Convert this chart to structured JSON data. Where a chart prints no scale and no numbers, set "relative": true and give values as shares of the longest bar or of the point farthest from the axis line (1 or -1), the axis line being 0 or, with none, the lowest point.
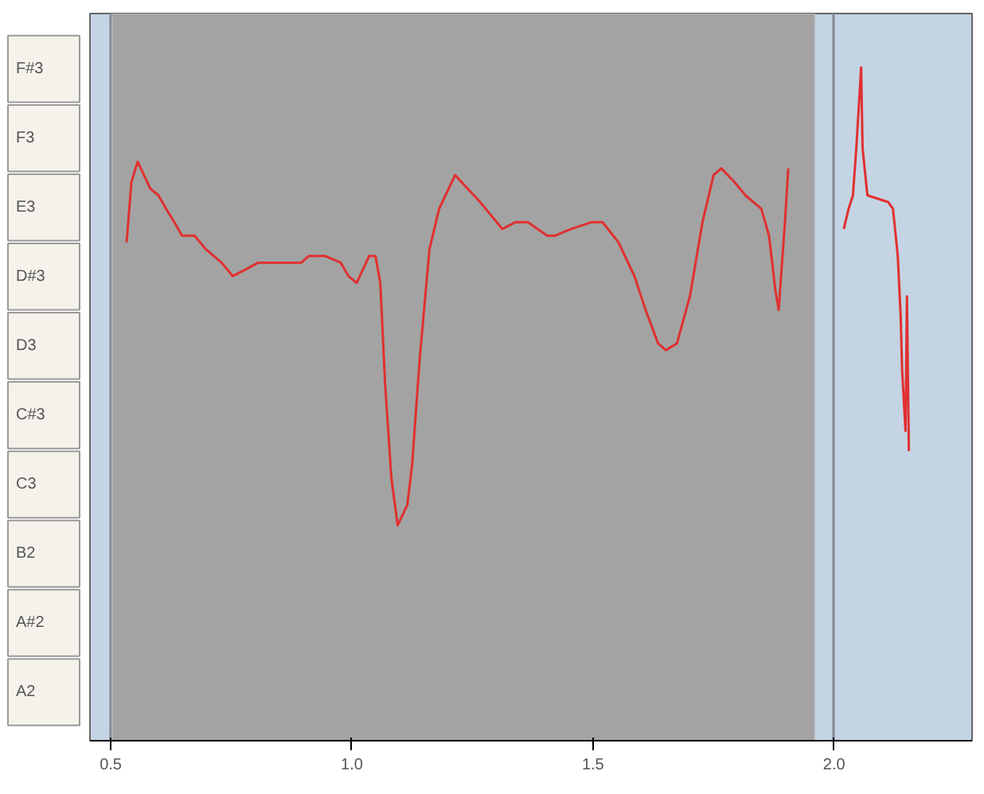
{
  "chart_data": {
    "type": "line",
    "relative": true,
    "xlim": [
      0.457,
      2.286
    ],
    "xticks": [
      {
        "value": 0.5,
        "label": "0.5"
      },
      {
        "value": 1.0,
        "label": "1.0"
      },
      {
        "value": 1.5,
        "label": "1.5"
      },
      {
        "value": 2.0,
        "label": "2.0"
      }
    ],
    "grid": "x",
    "marker": "none",
    "line_style": "solid",
    "annotations": [
      "F#3",
      "F3",
      "E3",
      "D#3",
      "D3",
      "C#3",
      "C3",
      "B2",
      "A#2",
      "A2"
    ],
    "bands": [
      {
        "axis": "x",
        "from": 0.503,
        "to": 1.96,
        "color": "#a3a3a3"
      }
    ],
    "series": [
      {
        "color": "#e03030",
        "x": [
          0.533,
          0.543,
          0.556,
          0.569,
          0.582,
          0.599,
          0.615,
          0.632,
          0.648,
          0.674,
          0.697,
          0.73,
          0.753,
          0.78,
          0.806,
          0.829,
          0.845,
          0.872,
          0.895,
          0.911,
          0.944,
          0.977,
          0.993,
          1.01,
          1.036,
          1.049,
          1.059,
          1.069,
          1.082,
          1.095,
          1.115,
          1.125,
          1.141,
          1.161,
          1.181,
          1.214,
          1.24,
          1.266,
          1.289,
          1.312,
          1.339,
          1.365,
          1.405,
          1.421,
          1.454,
          1.497,
          1.52,
          1.553,
          1.586,
          1.609,
          1.635,
          1.651,
          1.674,
          1.701,
          1.727,
          1.75,
          1.766,
          1.793,
          1.816,
          1.849,
          1.865,
          1.878,
          1.885,
          1.898,
          1.905
        ],
        "values": [
          0.74,
          0.83,
          0.86,
          0.84,
          0.82,
          0.81,
          0.79,
          0.77,
          0.75,
          0.75,
          0.73,
          0.71,
          0.69,
          0.7,
          0.71,
          0.71,
          0.71,
          0.71,
          0.71,
          0.72,
          0.72,
          0.71,
          0.69,
          0.68,
          0.72,
          0.72,
          0.68,
          0.53,
          0.39,
          0.32,
          0.35,
          0.41,
          0.57,
          0.73,
          0.79,
          0.84,
          0.82,
          0.8,
          0.78,
          0.76,
          0.77,
          0.77,
          0.75,
          0.75,
          0.76,
          0.77,
          0.77,
          0.74,
          0.69,
          0.64,
          0.59,
          0.58,
          0.59,
          0.66,
          0.77,
          0.84,
          0.85,
          0.83,
          0.81,
          0.79,
          0.75,
          0.67,
          0.64,
          0.77,
          0.85
        ]
      },
      {
        "color": "#e03030",
        "x": [
          2.02,
          2.03,
          2.039,
          2.046,
          2.056,
          2.059,
          2.069,
          2.112,
          2.122,
          2.132,
          2.138,
          2.141,
          2.148,
          2.151,
          2.155
        ],
        "values": [
          0.76,
          0.79,
          0.81,
          0.88,
          1,
          0.88,
          0.81,
          0.8,
          0.79,
          0.72,
          0.63,
          0.55,
          0.46,
          0.66,
          0.43
        ]
      }
    ]
  }
}
